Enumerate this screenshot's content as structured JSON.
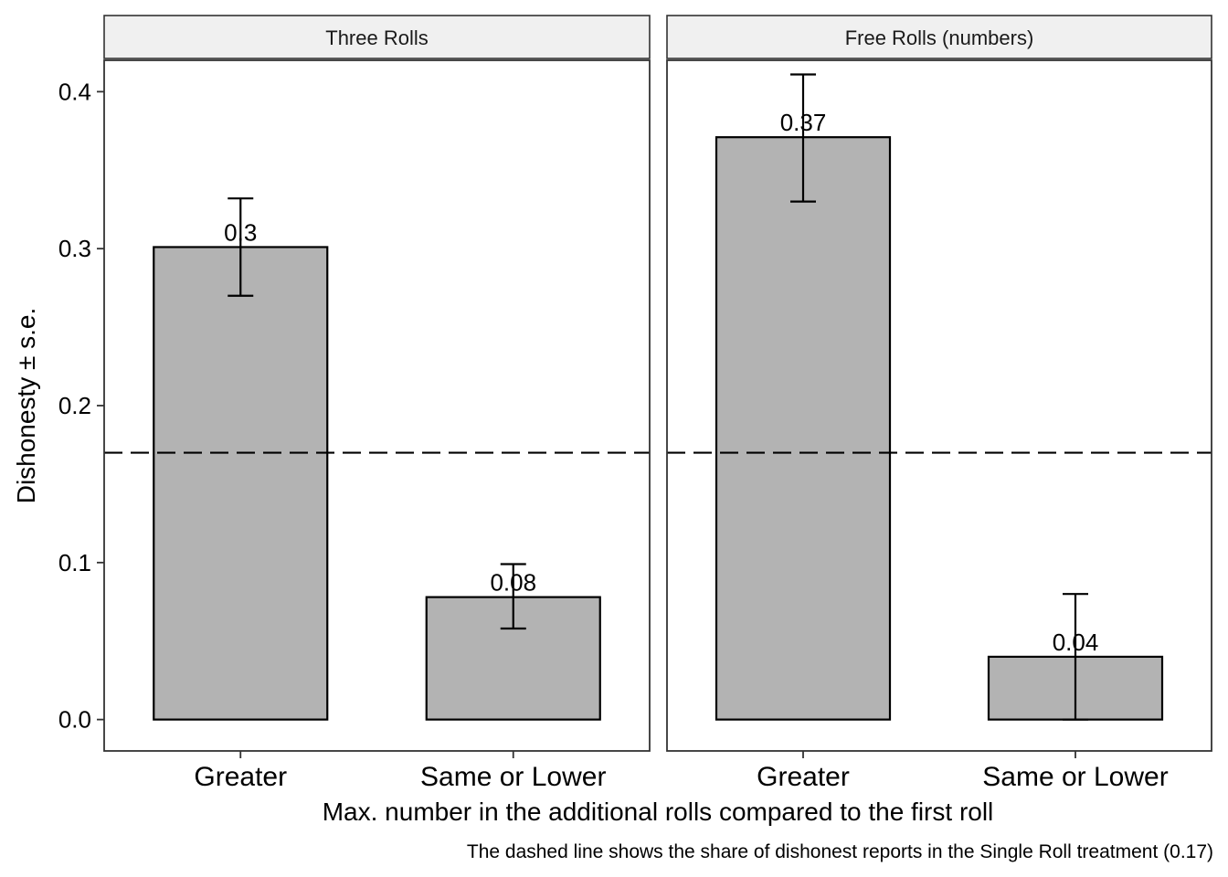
{
  "chart_data": {
    "type": "bar",
    "xlabel": "Max. number in the additional rolls compared to the first roll",
    "ylabel": "Dishonesty ± s.e.",
    "caption": "The dashed line shows the share of dishonest reports in the Single Roll treatment (0.17)",
    "ylim": [
      -0.02,
      0.42
    ],
    "yticks": [
      0.0,
      0.1,
      0.2,
      0.3,
      0.4
    ],
    "ytick_labels": [
      "0.0",
      "0.1",
      "0.2",
      "0.3",
      "0.4"
    ],
    "categories": [
      "Greater",
      "Same or Lower"
    ],
    "reference_line": 0.17,
    "bar_color": "#b3b3b3",
    "grid": false,
    "panels": [
      {
        "title": "Three Rolls",
        "values": [
          0.301,
          0.078
        ],
        "labels": [
          "0.3",
          "0.08"
        ],
        "error_low": [
          0.27,
          0.058
        ],
        "error_high": [
          0.332,
          0.099
        ]
      },
      {
        "title": "Free Rolls (numbers)",
        "values": [
          0.371,
          0.04
        ],
        "labels": [
          "0.37",
          "0.04"
        ],
        "error_low": [
          0.33,
          0.0
        ],
        "error_high": [
          0.411,
          0.08
        ]
      }
    ]
  }
}
